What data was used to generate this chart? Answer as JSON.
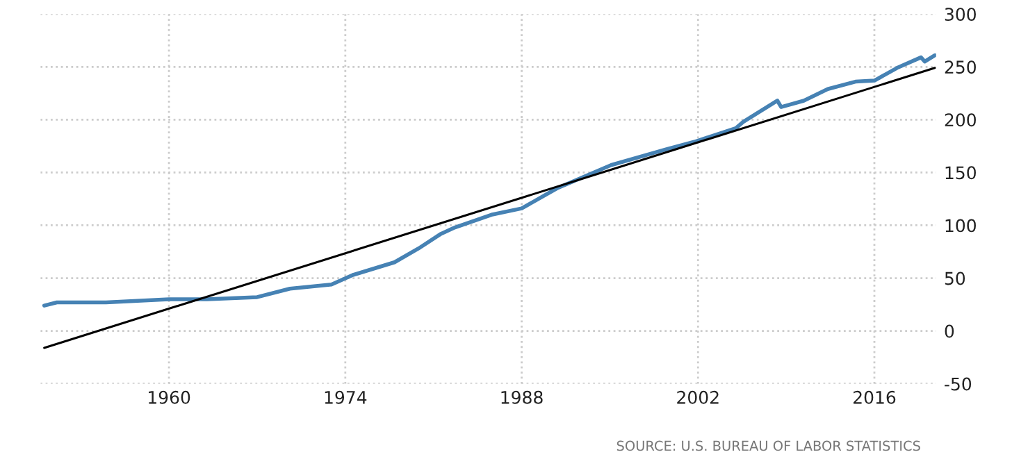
{
  "chart_data": {
    "type": "line",
    "series": [
      {
        "color": "#4682b4",
        "x": [
          1950.1,
          1951.1,
          1955,
          1960,
          1963,
          1967,
          1969.6,
          1972.9,
          1974.6,
          1977.9,
          1979.8,
          1981.6,
          1982.7,
          1985.6,
          1988,
          1990.8,
          1995.1,
          1999.5,
          2001.7,
          2005,
          2005.6,
          2008.3,
          2008.6,
          2010.4,
          2012.3,
          2014.5,
          2016,
          2017.8,
          2019.7,
          2020,
          2020.8
        ],
        "values": [
          24,
          27,
          27,
          30,
          30,
          32,
          40,
          44,
          53,
          65,
          78,
          92,
          98,
          110,
          116,
          135,
          157,
          172,
          179,
          192,
          198,
          218,
          212,
          218,
          229,
          236,
          237,
          249,
          259,
          255,
          261
        ]
      },
      {
        "type": "line",
        "color": "#000000",
        "x": [
          1950.1,
          2020.8
        ],
        "values": [
          -16,
          249
        ]
      }
    ],
    "xlim": [
      1949.8,
      2020.9
    ],
    "ylim": [
      -50,
      300
    ],
    "xticks": [
      1960,
      1974,
      1988,
      2002,
      2016
    ],
    "yticks": [
      -50,
      0,
      50,
      100,
      150,
      200,
      250,
      300
    ],
    "grid": true,
    "legend": false,
    "annotations": [
      "SOURCE: U.S. BUREAU OF LABOR STATISTICS"
    ]
  }
}
